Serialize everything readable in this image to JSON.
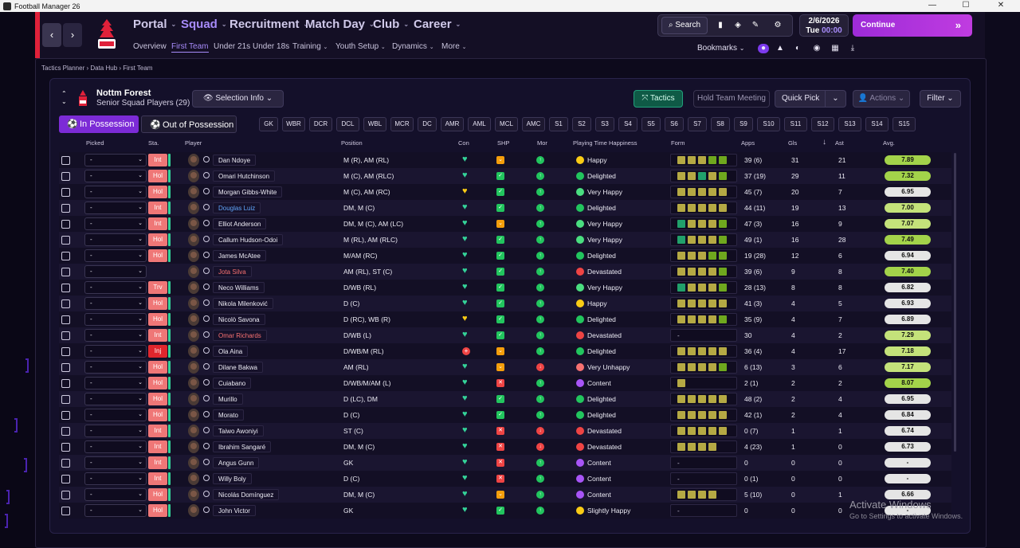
{
  "window": {
    "title": "Football Manager 26",
    "controls": [
      "—",
      "☐",
      "✕"
    ]
  },
  "nav": {
    "back": "‹",
    "forward": "›",
    "main": [
      {
        "label": "Portal",
        "active": false
      },
      {
        "label": "Squad",
        "active": true
      },
      {
        "label": "Recruitment",
        "active": false
      },
      {
        "label": "Match Day",
        "active": false
      },
      {
        "label": "Club",
        "active": false
      },
      {
        "label": "Career",
        "active": false
      }
    ],
    "sub": [
      {
        "label": "Overview",
        "active": false
      },
      {
        "label": "First Team",
        "active": true
      },
      {
        "label": "Under 21s",
        "active": false
      },
      {
        "label": "Under 18s",
        "active": false
      },
      {
        "label": "Training",
        "active": false,
        "dd": true
      },
      {
        "label": "Youth Setup",
        "active": false,
        "dd": true
      },
      {
        "label": "Dynamics",
        "active": false,
        "dd": true
      },
      {
        "label": "More",
        "active": false,
        "dd": true
      }
    ]
  },
  "toolbar": {
    "search": "Search",
    "date": "2/6/2026",
    "day": "Tue",
    "time": "00:00",
    "continue": "Continue",
    "bookmarks": "Bookmarks"
  },
  "breadcrumb": [
    "Tactics Planner",
    "Data Hub",
    "First Team"
  ],
  "club": {
    "name": "Nottm Forest",
    "subtitle": "Senior Squad Players (29)"
  },
  "controls": {
    "selection": "Selection Info",
    "tactics": "Tactics",
    "hold": "Hold Team Meeting",
    "quickpick": "Quick Pick",
    "actions": "Actions",
    "filter": "Filter",
    "in_possession": "In Possession",
    "out_possession": "Out of Possession"
  },
  "positions": [
    "GK",
    "WBR",
    "DCR",
    "DCL",
    "WBL",
    "MCR",
    "DC",
    "AMR",
    "AML",
    "MCL",
    "AMC",
    "S1",
    "S2",
    "S3",
    "S4",
    "S5",
    "S6",
    "S7",
    "S8",
    "S9",
    "S10",
    "S11",
    "S12",
    "S13",
    "S14",
    "S15"
  ],
  "columns": {
    "picked": "Picked",
    "sta": "Sta.",
    "player": "Player",
    "position": "Position",
    "con": "Con",
    "shp": "SHP",
    "mor": "Mor",
    "happiness": "Playing Time Happiness",
    "form": "Form",
    "apps": "Apps",
    "gls": "Gls",
    "ast": "Ast",
    "avg": "Avg."
  },
  "colors": {
    "accent": "#a78bfa",
    "continue": "#b535df",
    "fit": "#34d399",
    "form_good": "#6fa81e",
    "form_mid": "#b5a944",
    "form_top": "#21a06b"
  },
  "players": [
    {
      "sta": "Int",
      "name": "Dan Ndoye",
      "pos": "M (R), AM (RL)",
      "con": "g",
      "shp": "o",
      "mor": "g",
      "hap": "Happy",
      "form": [
        "m",
        "m",
        "m",
        "g",
        "g"
      ],
      "apps": "39 (6)",
      "gls": "31",
      "ast": "21",
      "avg": "7.89"
    },
    {
      "sta": "Hol",
      "name": "Omari Hutchinson",
      "pos": "M (C), AM (RLC)",
      "con": "g",
      "shp": "g",
      "mor": "g",
      "hap": "Delighted",
      "form": [
        "m",
        "m",
        "t",
        "m",
        "g"
      ],
      "apps": "37 (19)",
      "gls": "29",
      "ast": "11",
      "avg": "7.32"
    },
    {
      "sta": "Hol",
      "name": "Morgan Gibbs-White",
      "pos": "M (C), AM (RC)",
      "con": "y",
      "shp": "g",
      "mor": "g",
      "hap": "Very Happy",
      "form": [
        "m",
        "m",
        "m",
        "m",
        "m"
      ],
      "apps": "45 (7)",
      "gls": "20",
      "ast": "7",
      "avg": "6.95"
    },
    {
      "sta": "Int",
      "name": "Douglas Luiz",
      "nameColor": "blue",
      "pos": "DM, M (C)",
      "con": "g",
      "shp": "g",
      "mor": "g",
      "hap": "Delighted",
      "form": [
        "m",
        "m",
        "m",
        "m",
        "m"
      ],
      "apps": "44 (11)",
      "gls": "19",
      "ast": "13",
      "avg": "7.00"
    },
    {
      "sta": "Int",
      "name": "Elliot Anderson",
      "pos": "DM, M (C), AM (LC)",
      "con": "g",
      "shp": "o",
      "mor": "g",
      "hap": "Very Happy",
      "form": [
        "t",
        "m",
        "m",
        "m",
        "g"
      ],
      "apps": "47 (3)",
      "gls": "16",
      "ast": "9",
      "avg": "7.07"
    },
    {
      "sta": "Hol",
      "name": "Callum Hudson-Odoi",
      "pos": "M (RL), AM (RLC)",
      "con": "g",
      "shp": "g",
      "mor": "g",
      "hap": "Very Happy",
      "form": [
        "t",
        "m",
        "m",
        "m",
        "g"
      ],
      "apps": "49 (1)",
      "gls": "16",
      "ast": "28",
      "avg": "7.49"
    },
    {
      "sta": "Hol",
      "name": "James McAtee",
      "pos": "M/AM (RC)",
      "con": "g",
      "shp": "g",
      "mor": "g",
      "hap": "Delighted",
      "form": [
        "m",
        "m",
        "m",
        "g",
        "g"
      ],
      "apps": "19 (28)",
      "gls": "12",
      "ast": "6",
      "avg": "6.94"
    },
    {
      "sta": "",
      "name": "Jota Silva",
      "nameColor": "red",
      "pos": "AM (RL), ST (C)",
      "con": "g",
      "shp": "g",
      "mor": "g",
      "hap": "Devastated",
      "form": [
        "m",
        "m",
        "m",
        "m",
        "g"
      ],
      "apps": "39 (6)",
      "gls": "9",
      "ast": "8",
      "avg": "7.40"
    },
    {
      "sta": "Trv",
      "name": "Neco Williams",
      "pos": "D/WB (RL)",
      "con": "g",
      "shp": "g",
      "mor": "g",
      "hap": "Very Happy",
      "form": [
        "t",
        "m",
        "m",
        "m",
        "g"
      ],
      "apps": "28 (13)",
      "gls": "8",
      "ast": "8",
      "avg": "6.82"
    },
    {
      "sta": "Hol",
      "name": "Nikola Milenković",
      "pos": "D (C)",
      "con": "g",
      "shp": "g",
      "mor": "g",
      "hap": "Happy",
      "form": [
        "m",
        "m",
        "m",
        "m",
        "m"
      ],
      "apps": "41 (3)",
      "gls": "4",
      "ast": "5",
      "avg": "6.93"
    },
    {
      "sta": "Hol",
      "name": "Nicolò Savona",
      "pos": "D (RC), WB (R)",
      "con": "y",
      "shp": "g",
      "mor": "g",
      "hap": "Delighted",
      "form": [
        "m",
        "m",
        "m",
        "m",
        "g"
      ],
      "apps": "35 (9)",
      "gls": "4",
      "ast": "7",
      "avg": "6.89"
    },
    {
      "sta": "Int",
      "name": "Omar Richards",
      "nameColor": "red",
      "pos": "D/WB (L)",
      "con": "g",
      "shp": "g",
      "mor": "g",
      "hap": "Devastated",
      "form": [],
      "apps": "30",
      "gls": "4",
      "ast": "2",
      "avg": "7.29"
    },
    {
      "sta": "Inj",
      "name": "Ola Aina",
      "pos": "D/WB/M (RL)",
      "con": "r",
      "shp": "o",
      "mor": "g",
      "hap": "Delighted",
      "form": [
        "m",
        "m",
        "m",
        "m",
        "m"
      ],
      "apps": "36 (4)",
      "gls": "4",
      "ast": "17",
      "avg": "7.18"
    },
    {
      "sta": "Hol",
      "name": "Dilane Bakwa",
      "pos": "AM (RL)",
      "con": "g",
      "shp": "o",
      "mor": "r",
      "hap": "Very Unhappy",
      "form": [
        "m",
        "m",
        "m",
        "m",
        "g"
      ],
      "apps": "6 (13)",
      "gls": "3",
      "ast": "6",
      "avg": "7.17"
    },
    {
      "sta": "Hol",
      "name": "Cuiabano",
      "pos": "D/WB/M/AM (L)",
      "con": "g",
      "shp": "x",
      "mor": "g",
      "hap": "Content",
      "form": [
        "m"
      ],
      "apps": "2 (1)",
      "gls": "2",
      "ast": "2",
      "avg": "8.07"
    },
    {
      "sta": "Hol",
      "name": "Murillo",
      "pos": "D (LC), DM",
      "con": "g",
      "shp": "g",
      "mor": "g",
      "hap": "Delighted",
      "form": [
        "m",
        "m",
        "m",
        "m",
        "m"
      ],
      "apps": "48 (2)",
      "gls": "2",
      "ast": "4",
      "avg": "6.95"
    },
    {
      "sta": "Hol",
      "name": "Morato",
      "pos": "D (C)",
      "con": "g",
      "shp": "g",
      "mor": "g",
      "hap": "Delighted",
      "form": [
        "m",
        "m",
        "m",
        "m",
        "m"
      ],
      "apps": "42 (1)",
      "gls": "2",
      "ast": "4",
      "avg": "6.84"
    },
    {
      "sta": "Int",
      "name": "Taiwo Awoniyi",
      "pos": "ST (C)",
      "con": "g",
      "shp": "x",
      "mor": "r",
      "hap": "Devastated",
      "form": [
        "m",
        "m",
        "m",
        "m",
        "m"
      ],
      "apps": "0 (7)",
      "gls": "1",
      "ast": "1",
      "avg": "6.74"
    },
    {
      "sta": "Int",
      "name": "Ibrahim Sangaré",
      "pos": "DM, M (C)",
      "con": "g",
      "shp": "x",
      "mor": "r",
      "hap": "Devastated",
      "form": [
        "m",
        "m",
        "m",
        "m"
      ],
      "apps": "4 (23)",
      "gls": "1",
      "ast": "0",
      "avg": "6.73"
    },
    {
      "sta": "Int",
      "name": "Angus Gunn",
      "pos": "GK",
      "con": "g",
      "shp": "x",
      "mor": "g",
      "hap": "Content",
      "form": [],
      "apps": "0",
      "gls": "0",
      "ast": "0",
      "avg": "-"
    },
    {
      "sta": "Int",
      "name": "Willy Boly",
      "pos": "D (C)",
      "con": "g",
      "shp": "x",
      "mor": "g",
      "hap": "Content",
      "form": [],
      "apps": "0 (1)",
      "gls": "0",
      "ast": "0",
      "avg": "-"
    },
    {
      "sta": "Hol",
      "name": "Nicolás Domínguez",
      "pos": "DM, M (C)",
      "con": "g",
      "shp": "o",
      "mor": "g",
      "hap": "Content",
      "form": [
        "m",
        "m",
        "m",
        "m"
      ],
      "apps": "5 (10)",
      "gls": "0",
      "ast": "1",
      "avg": "6.66"
    },
    {
      "sta": "Hol",
      "name": "John Victor",
      "pos": "GK",
      "con": "g",
      "shp": "g",
      "mor": "g",
      "hap": "Slightly Happy",
      "form": [],
      "apps": "0",
      "gls": "0",
      "ast": "0",
      "avg": "-"
    }
  ],
  "watermark": {
    "title": "Activate Windows",
    "sub": "Go to Settings to activate Windows."
  }
}
